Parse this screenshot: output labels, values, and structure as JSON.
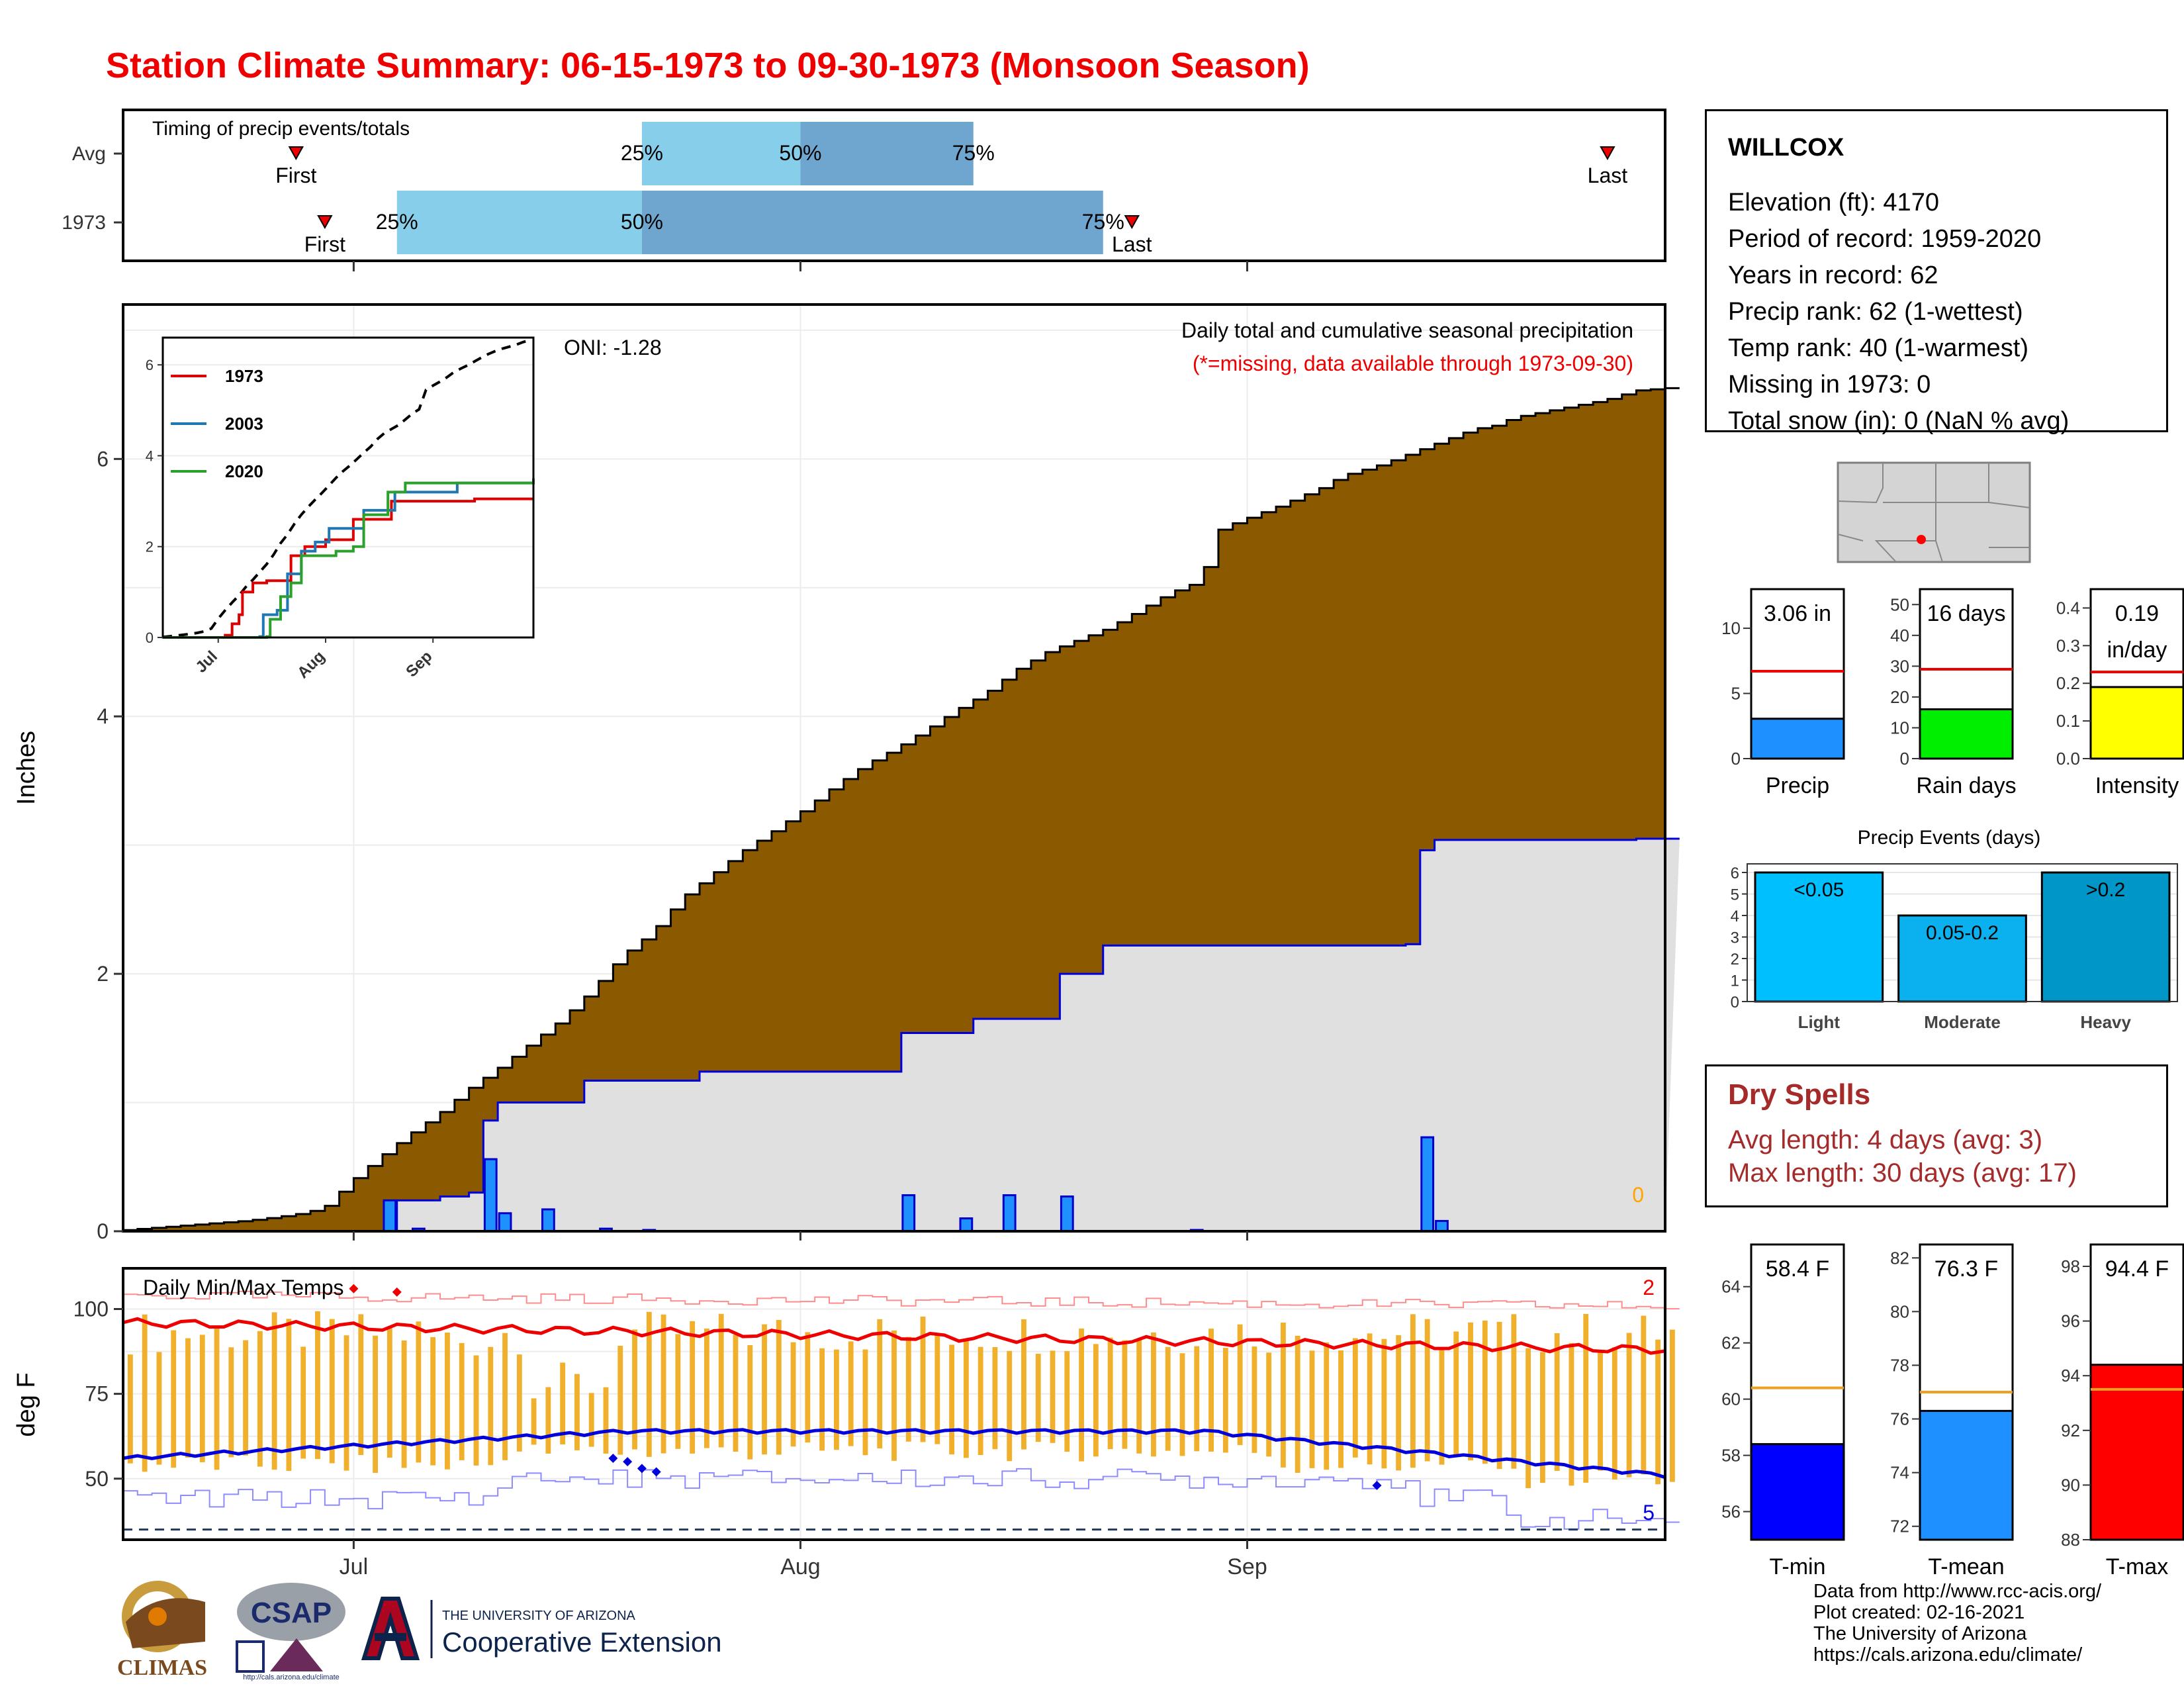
{
  "title": "Station Climate Summary: 06-15-1973 to 09-30-1973 (Monsoon Season)",
  "station": {
    "name": "WILLCOX",
    "rows": [
      "Elevation (ft): 4170",
      "Period of record: 1959-2020",
      "Years in record: 62",
      "Precip rank: 62 (1-wettest)",
      "Temp rank: 40 (1-warmest)",
      "Missing in 1973: 0",
      "Total snow (in): 0 (NaN % avg)"
    ]
  },
  "timing": {
    "title": "Timing of precip events/totals",
    "rows": [
      {
        "label": "Avg",
        "first": "06-27",
        "q25": "07-21",
        "q50": "08-01",
        "q75": "08-13",
        "last": "09-26"
      },
      {
        "label": "1973",
        "first": "06-29",
        "q25": "07-04",
        "q50": "07-21",
        "q75": "08-22",
        "last": "08-24"
      }
    ],
    "text_first": "First",
    "text_last": "Last",
    "text_25": "25%",
    "text_50": "50%",
    "text_75": "75%"
  },
  "precip": {
    "ylabel": "Inches",
    "title": "Daily total and cumulative seasonal precipitation",
    "subtitle": "(*=missing, data available through 1973-09-30)",
    "oni": "ONI: -1.28",
    "zero_label": "0",
    "chart_data": {
      "type": "area",
      "x_start": "1973-06-15",
      "x_end": "1973-09-30",
      "ylim": [
        0,
        7.2
      ],
      "yticks": [
        0,
        2,
        4,
        6
      ],
      "avg_cumulative": [
        [
          0,
          0.01
        ],
        [
          6,
          0.05
        ],
        [
          12,
          0.09
        ],
        [
          15,
          0.12
        ],
        [
          18,
          0.16
        ],
        [
          20,
          0.22
        ],
        [
          22,
          0.4
        ],
        [
          25,
          0.62
        ],
        [
          28,
          0.82
        ],
        [
          31,
          1.0
        ],
        [
          34,
          1.22
        ],
        [
          37,
          1.4
        ],
        [
          40,
          1.6
        ],
        [
          43,
          1.8
        ],
        [
          46,
          2.05
        ],
        [
          49,
          2.35
        ],
        [
          52,
          2.55
        ],
        [
          55,
          2.85
        ],
        [
          58,
          3.05
        ],
        [
          61,
          3.25
        ],
        [
          64,
          3.42
        ],
        [
          67,
          3.6
        ],
        [
          70,
          3.8
        ],
        [
          73,
          3.98
        ],
        [
          76,
          4.12
        ],
        [
          79,
          4.28
        ],
        [
          82,
          4.45
        ],
        [
          85,
          4.6
        ],
        [
          88,
          4.8
        ],
        [
          91,
          4.95
        ],
        [
          94,
          5.05
        ],
        [
          97,
          5.15
        ],
        [
          100,
          5.3
        ],
        [
          103,
          5.45
        ],
        [
          106,
          5.55
        ],
        [
          108,
          6.0
        ],
        [
          111,
          6.1
        ],
        [
          114,
          6.2
        ],
        [
          118,
          6.35
        ],
        [
          120,
          6.45
        ],
        [
          124,
          6.55
        ],
        [
          127,
          6.65
        ],
        [
          130,
          6.75
        ],
        [
          133,
          6.85
        ],
        [
          135,
          6.88
        ],
        [
          137,
          6.95
        ],
        [
          140,
          7.0
        ],
        [
          143,
          7.05
        ],
        [
          146,
          7.1
        ],
        [
          149,
          7.18
        ],
        [
          152,
          7.2
        ]
      ],
      "cum_1973": [
        [
          0,
          0
        ],
        [
          18,
          0
        ],
        [
          19,
          0.24
        ],
        [
          22,
          0.27
        ],
        [
          24,
          0.3
        ],
        [
          25,
          0.86
        ],
        [
          26,
          1.0
        ],
        [
          32,
          1.17
        ],
        [
          40,
          1.24
        ],
        [
          53,
          1.24
        ],
        [
          54,
          1.54
        ],
        [
          58,
          1.54
        ],
        [
          59,
          1.65
        ],
        [
          64,
          1.65
        ],
        [
          65,
          2.0
        ],
        [
          68,
          2.22
        ],
        [
          74,
          2.22
        ],
        [
          89,
          2.23
        ],
        [
          90,
          2.96
        ],
        [
          91,
          3.04
        ],
        [
          105,
          3.05
        ],
        [
          113,
          3.05
        ]
      ],
      "daily_1973": [
        [
          18,
          0.24
        ],
        [
          20,
          0.02
        ],
        [
          25,
          0.56
        ],
        [
          26,
          0.14
        ],
        [
          29,
          0.17
        ],
        [
          33,
          0.02
        ],
        [
          36,
          0.01
        ],
        [
          54,
          0.28
        ],
        [
          58,
          0.1
        ],
        [
          61,
          0.28
        ],
        [
          65,
          0.27
        ],
        [
          74,
          0.01
        ],
        [
          90,
          0.73
        ],
        [
          91,
          0.08
        ]
      ],
      "series_inset": [
        {
          "name": "1973",
          "color": "#dd0000"
        },
        {
          "name": "2003",
          "color": "#1f77b4"
        },
        {
          "name": "2020",
          "color": "#2ca02c"
        }
      ],
      "inset_xticks": [
        "Jul",
        "Aug",
        "Sep"
      ],
      "inset_yticks": [
        0,
        2,
        4,
        6
      ]
    }
  },
  "temps": {
    "title": "Daily Min/Max Temps",
    "ylabel": "deg F",
    "yticks": [
      50,
      75,
      100
    ],
    "ylim": [
      32,
      112
    ],
    "count_hot": "2",
    "count_cold": "5",
    "chart_data": {
      "type": "bar",
      "x_start": "1973-06-15",
      "x_end": "1973-09-30",
      "avg_max_start": 96,
      "avg_max_end": 88,
      "avg_min_start": 56,
      "avg_min_peak": 64,
      "avg_min_end": 51
    }
  },
  "xaxis": {
    "ticks": [
      "Jul",
      "Aug",
      "Sep"
    ]
  },
  "summary_precip": {
    "labels": [
      "Precip",
      "Rain days",
      "Intensity"
    ],
    "values": [
      "3.06 in",
      "16 days",
      "0.19 in/day"
    ],
    "value_lines": [
      [
        "3.06 in"
      ],
      [
        "16 days"
      ],
      [
        "0.19",
        "in/day"
      ]
    ],
    "chart_data": [
      {
        "type": "bar",
        "value": 3.06,
        "avg": 6.7,
        "ylim": [
          0,
          13
        ],
        "yticks": [
          0,
          5,
          10
        ],
        "color": "#1e90ff"
      },
      {
        "type": "bar",
        "value": 16,
        "avg": 29,
        "ylim": [
          0,
          55
        ],
        "yticks": [
          0,
          10,
          20,
          30,
          40,
          50
        ],
        "color": "#00ee00"
      },
      {
        "type": "bar",
        "value": 0.19,
        "avg": 0.23,
        "ylim": [
          0,
          0.45
        ],
        "yticks": [
          "0.0",
          "0.1",
          "0.2",
          "0.3",
          "0.4"
        ],
        "color": "#ffff00"
      }
    ]
  },
  "events": {
    "title": "Precip Events (days)",
    "chart_data": {
      "type": "bar",
      "categories": [
        "Light",
        "Moderate",
        "Heavy"
      ],
      "labels": [
        "<0.05",
        "0.05-0.2",
        ">0.2"
      ],
      "values": [
        6,
        4,
        6
      ],
      "ylim": [
        0,
        6.4
      ],
      "yticks": [
        0,
        1,
        2,
        3,
        4,
        5,
        6
      ],
      "colors": [
        "#00bfff",
        "#0ab1ee",
        "#0096c8"
      ]
    }
  },
  "dry": {
    "title": "Dry Spells",
    "avg": "Avg length: 4 days (avg: 3)",
    "max": "Max length: 30 days (avg: 17)"
  },
  "summary_temp": {
    "labels": [
      "T-min",
      "T-mean",
      "T-max"
    ],
    "values": [
      "58.4 F",
      "76.3 F",
      "94.4 F"
    ],
    "chart_data": [
      {
        "type": "bar",
        "value": 58.4,
        "avg": 60.4,
        "ylim": [
          55,
          65.5
        ],
        "yticks": [
          56,
          58,
          60,
          62,
          64
        ],
        "color": "#0000ff"
      },
      {
        "type": "bar",
        "value": 76.3,
        "avg": 77,
        "ylim": [
          71.5,
          82.5
        ],
        "yticks": [
          72,
          74,
          76,
          78,
          80,
          82
        ],
        "color": "#1e90ff"
      },
      {
        "type": "bar",
        "value": 94.4,
        "avg": 93.5,
        "ylim": [
          88,
          98.8
        ],
        "yticks": [
          88,
          90,
          92,
          94,
          96,
          98
        ],
        "color": "#ff0000"
      }
    ]
  },
  "credits": [
    "Data from http://www.rcc-acis.org/",
    "Plot created: 02-16-2021",
    "The University of Arizona",
    "https://cals.arizona.edu/climate/"
  ],
  "logos": {
    "climas": "CLIMAS",
    "csap": "CSAP",
    "csap_url": "http://cals.arizona.edu/climate",
    "ua_small": "THE UNIVERSITY OF ARIZONA",
    "ua_main": "Cooperative Extension"
  }
}
